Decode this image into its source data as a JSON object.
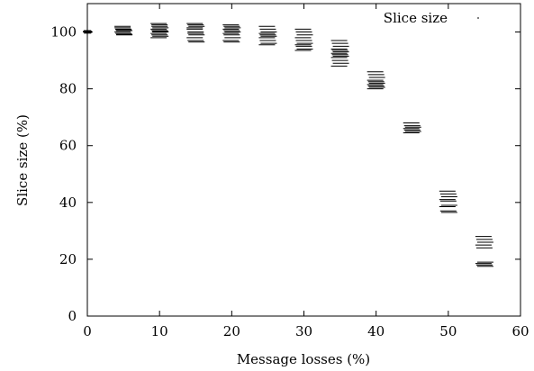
{
  "chart_data": {
    "type": "scatter",
    "title": "",
    "xlabel": "Message losses (%)",
    "ylabel": "Slice size (%)",
    "xlim": [
      0,
      60
    ],
    "ylim": [
      0,
      110
    ],
    "xticks": [
      0,
      10,
      20,
      30,
      40,
      50,
      60
    ],
    "yticks": [
      0,
      20,
      40,
      60,
      80,
      100
    ],
    "grid": false,
    "legend": {
      "position": "top-right",
      "entries": [
        "Slice size"
      ]
    },
    "series": [
      {
        "name": "Slice size",
        "marker": "horizontal-dash",
        "color": "#000000",
        "groups": [
          {
            "x": 0,
            "y": [
              100,
              100.5,
              99.8,
              100.2,
              99.6,
              100.3
            ]
          },
          {
            "x": 5,
            "y": [
              102,
              101,
              100.5,
              100,
              99.5,
              99,
              101.5,
              100.8,
              99.2
            ]
          },
          {
            "x": 10,
            "y": [
              103,
              102,
              101.5,
              101,
              100.5,
              100,
              99.5,
              99,
              98.5,
              98,
              102.5,
              100.2
            ]
          },
          {
            "x": 15,
            "y": [
              103,
              102.5,
              102,
              101,
              100,
              99,
              98,
              97,
              96.5,
              101.5,
              99.5
            ]
          },
          {
            "x": 20,
            "y": [
              102.5,
              102,
              101.5,
              101,
              100.5,
              100,
              99.5,
              99,
              98,
              97,
              96.5
            ]
          },
          {
            "x": 25,
            "y": [
              102,
              101,
              100,
              99.5,
              99,
              98.5,
              98,
              97,
              96,
              95.5
            ]
          },
          {
            "x": 30,
            "y": [
              101,
              100,
              99,
              98,
              97,
              96,
              95.5,
              95,
              94,
              93.5
            ]
          },
          {
            "x": 35,
            "y": [
              97,
              96,
              95,
              94,
              93.5,
              93,
              92.5,
              92,
              91.5,
              91,
              90,
              89,
              88
            ]
          },
          {
            "x": 40,
            "y": [
              86,
              85,
              84,
              83,
              82.5,
              82,
              81.5,
              81,
              80.5,
              80
            ]
          },
          {
            "x": 45,
            "y": [
              68,
              67,
              66.5,
              66,
              65.5,
              65,
              64.5
            ]
          },
          {
            "x": 50,
            "y": [
              44,
              43,
              42,
              41,
              40.5,
              39,
              38.5,
              37,
              36.5
            ]
          },
          {
            "x": 55,
            "y": [
              28,
              27,
              26,
              25,
              24,
              19,
              18.5,
              18,
              17.5
            ]
          }
        ]
      }
    ]
  }
}
